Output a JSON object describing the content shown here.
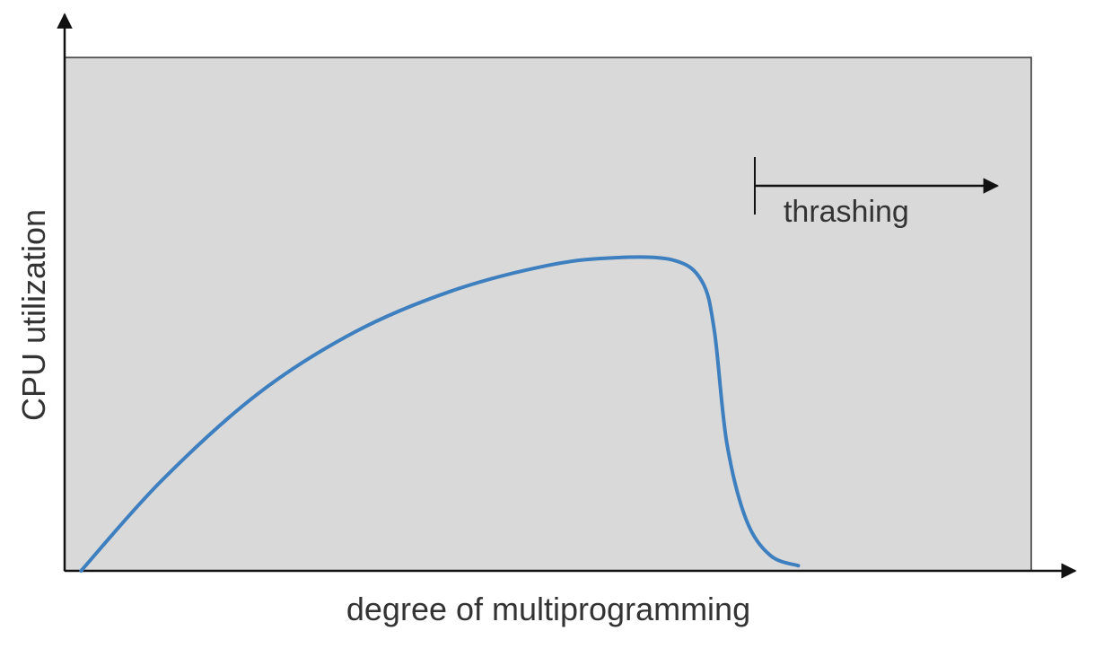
{
  "chart_data": {
    "type": "line",
    "title": "",
    "xlabel": "degree of multiprogramming",
    "ylabel": "CPU utilization",
    "grid": false,
    "legend": "none",
    "colors": {
      "plot_background": "#d9d9d9",
      "curve": "#3d7fbf",
      "axis": "#111111",
      "text": "#333333"
    },
    "xlim": [
      0,
      100
    ],
    "ylim": [
      0,
      100
    ],
    "series": [
      {
        "values": [
          {
            "x": 1.7,
            "y": 0
          },
          {
            "x": 10,
            "y": 17.5
          },
          {
            "x": 20,
            "y": 34.5
          },
          {
            "x": 30,
            "y": 46.5
          },
          {
            "x": 40,
            "y": 54.5
          },
          {
            "x": 50,
            "y": 59.5
          },
          {
            "x": 57,
            "y": 61
          },
          {
            "x": 63,
            "y": 60.5
          },
          {
            "x": 65.9,
            "y": 56.5
          },
          {
            "x": 67.2,
            "y": 47
          },
          {
            "x": 68.5,
            "y": 25
          },
          {
            "x": 70.5,
            "y": 10
          },
          {
            "x": 73,
            "y": 3
          },
          {
            "x": 75.9,
            "y": 1
          }
        ]
      }
    ],
    "annotations": [
      {
        "text": "thrashing",
        "x_start": 71.4,
        "x_end": 96.5,
        "y": 75
      }
    ]
  }
}
